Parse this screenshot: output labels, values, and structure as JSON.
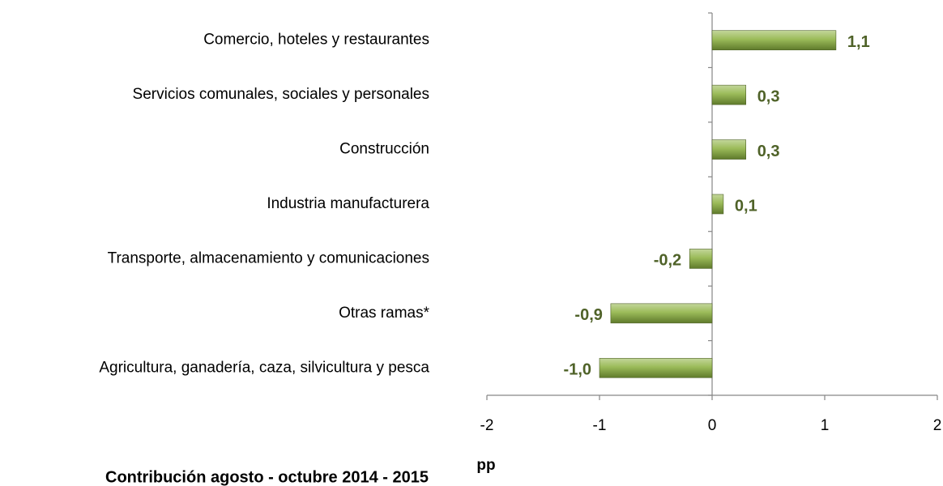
{
  "chart_data": {
    "type": "bar",
    "orientation": "horizontal",
    "title": "Contribución  agosto - octubre 2014 - 2015",
    "x_label": "pp",
    "categories": [
      "Comercio, hoteles y restaurantes",
      "Servicios comunales, sociales y personales",
      "Construcción",
      "Industria manufacturera",
      "Transporte, almacenamiento y comunicaciones",
      "Otras ramas*",
      "Agricultura, ganadería, caza, silvicultura y pesca"
    ],
    "values": [
      1.1,
      0.3,
      0.3,
      0.1,
      -0.2,
      -0.9,
      -1.0
    ],
    "value_labels": [
      "1,1",
      "0,3",
      "0,3",
      "0,1",
      "-0,2",
      "-0,9",
      "-1,0"
    ],
    "color": "#77933c",
    "xlim": [
      -2,
      2
    ],
    "xticks": [
      -2,
      -1,
      0,
      1,
      2
    ],
    "grid": false
  }
}
